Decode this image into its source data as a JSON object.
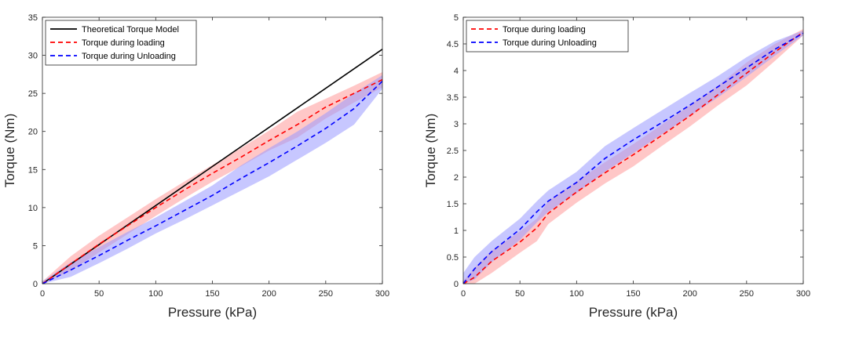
{
  "colors": {
    "theory": "#000000",
    "loading": "#ff0000",
    "unloading": "#0000ff",
    "loading_band": "#ff9999",
    "unloading_band": "#9999ff",
    "axes": "#262626"
  },
  "chart_data": [
    {
      "type": "line",
      "xlabel": "Pressure (kPa)",
      "ylabel": "Torque (Nm)",
      "xlim": [
        0,
        300
      ],
      "ylim": [
        0,
        35
      ],
      "xticks": [
        "0",
        "50",
        "100",
        "150",
        "200",
        "250",
        "300"
      ],
      "yticks": [
        "0",
        "5",
        "10",
        "15",
        "20",
        "25",
        "30",
        "35"
      ],
      "legend_position": "top-left",
      "grid": false,
      "series": [
        {
          "name": "Theoretical Torque Model",
          "style": "solid",
          "color": "#000000",
          "x": [
            0,
            300
          ],
          "y": [
            0,
            30.8
          ]
        },
        {
          "name": "Torque during loading",
          "style": "dashed",
          "color": "#ff0000",
          "x": [
            0,
            25,
            50,
            75,
            100,
            125,
            150,
            175,
            200,
            225,
            250,
            275,
            300
          ],
          "y": [
            0,
            2.6,
            5.2,
            7.6,
            10.0,
            12.3,
            14.5,
            16.6,
            18.8,
            20.9,
            23.2,
            25.0,
            26.8
          ],
          "band_upper": [
            0.3,
            3.6,
            6.3,
            8.7,
            11.1,
            13.4,
            15.6,
            17.8,
            20.1,
            22.6,
            24.3,
            26.0,
            27.8
          ],
          "band_lower": [
            0,
            1.7,
            4.1,
            6.5,
            8.9,
            11.2,
            13.4,
            15.4,
            17.5,
            19.2,
            21.7,
            23.8,
            25.8
          ]
        },
        {
          "name": "Torque during Unloading",
          "style": "dashed",
          "color": "#0000ff",
          "x": [
            0,
            25,
            50,
            75,
            100,
            125,
            150,
            175,
            200,
            225,
            250,
            275,
            300
          ],
          "y": [
            0,
            1.8,
            3.7,
            5.7,
            7.6,
            9.6,
            11.6,
            13.8,
            15.9,
            18.1,
            20.4,
            23.0,
            26.6
          ],
          "band_upper": [
            0.3,
            2.8,
            4.8,
            6.8,
            8.7,
            10.8,
            12.9,
            15.5,
            17.8,
            20.0,
            22.4,
            25.0,
            27.4
          ],
          "band_lower": [
            0,
            0.9,
            2.7,
            4.6,
            6.6,
            8.4,
            10.3,
            12.2,
            14.1,
            16.3,
            18.5,
            20.9,
            25.6
          ]
        }
      ]
    },
    {
      "type": "line",
      "xlabel": "Pressure (kPa)",
      "ylabel": "Torque (Nm)",
      "xlim": [
        0,
        300
      ],
      "ylim": [
        0,
        5
      ],
      "xticks": [
        "0",
        "50",
        "100",
        "150",
        "200",
        "250",
        "300"
      ],
      "yticks": [
        "0",
        "0.5",
        "1",
        "1.5",
        "2",
        "2.5",
        "3",
        "3.5",
        "4",
        "4.5",
        "5"
      ],
      "legend_position": "top-left",
      "grid": false,
      "series": [
        {
          "name": "Torque during loading",
          "style": "dashed",
          "color": "#ff0000",
          "x": [
            0,
            10,
            25,
            50,
            65,
            75,
            100,
            125,
            150,
            175,
            200,
            225,
            250,
            275,
            300
          ],
          "y": [
            0,
            0.12,
            0.42,
            0.78,
            1.05,
            1.32,
            1.72,
            2.08,
            2.42,
            2.78,
            3.15,
            3.55,
            3.95,
            4.35,
            4.72
          ],
          "band_upper": [
            0.05,
            0.3,
            0.62,
            0.98,
            1.22,
            1.55,
            1.92,
            2.28,
            2.62,
            2.98,
            3.35,
            3.72,
            4.15,
            4.5,
            4.78
          ],
          "band_lower": [
            0,
            0.0,
            0.2,
            0.58,
            0.8,
            1.12,
            1.52,
            1.88,
            2.2,
            2.58,
            2.95,
            3.35,
            3.72,
            4.18,
            4.66
          ]
        },
        {
          "name": "Torque during Unloading",
          "style": "dashed",
          "color": "#0000ff",
          "x": [
            0,
            10,
            25,
            50,
            65,
            75,
            100,
            125,
            150,
            175,
            200,
            225,
            250,
            275,
            300
          ],
          "y": [
            0,
            0.28,
            0.6,
            1.02,
            1.35,
            1.55,
            1.9,
            2.35,
            2.7,
            3.02,
            3.35,
            3.7,
            4.05,
            4.4,
            4.7
          ],
          "band_upper": [
            0.2,
            0.5,
            0.8,
            1.22,
            1.55,
            1.75,
            2.1,
            2.58,
            2.92,
            3.25,
            3.58,
            3.9,
            4.25,
            4.55,
            4.75
          ],
          "band_lower": [
            0,
            0.08,
            0.4,
            0.82,
            1.15,
            1.35,
            1.7,
            2.1,
            2.45,
            2.8,
            3.15,
            3.5,
            3.88,
            4.28,
            4.66
          ]
        }
      ]
    }
  ]
}
